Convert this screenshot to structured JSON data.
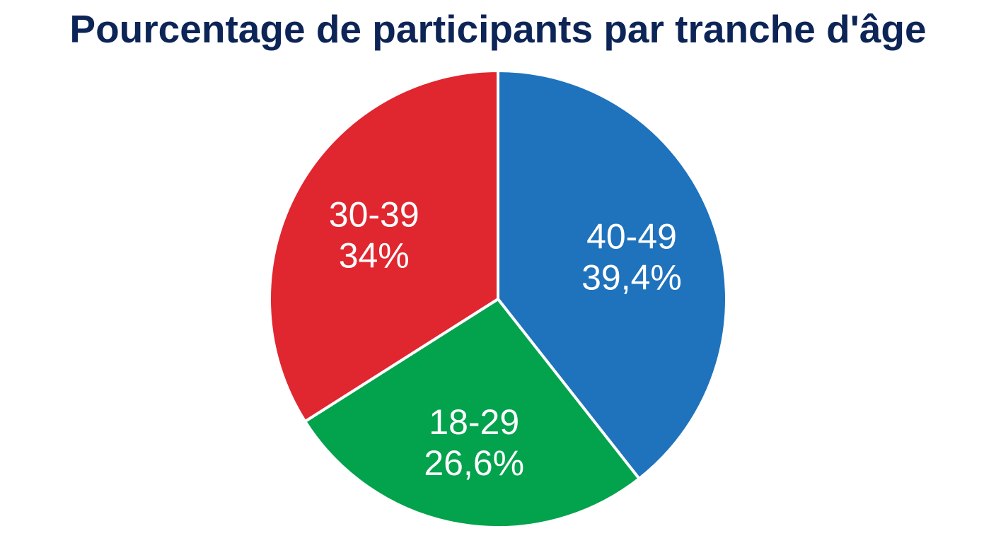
{
  "chart_data": {
    "type": "pie",
    "title": "Pourcentage de participants par tranche d'âge",
    "slices": [
      {
        "label": "40-49",
        "value": 39.4,
        "value_text": "39,4%",
        "color": "#1f72bc"
      },
      {
        "label": "18-29",
        "value": 26.6,
        "value_text": "26,6%",
        "color": "#03a24d"
      },
      {
        "label": "30-39",
        "value": 34.0,
        "value_text": "34%",
        "color": "#e0262f"
      }
    ],
    "start": "top",
    "direction": "clockwise",
    "legend": "none",
    "data_labels": "inside"
  }
}
